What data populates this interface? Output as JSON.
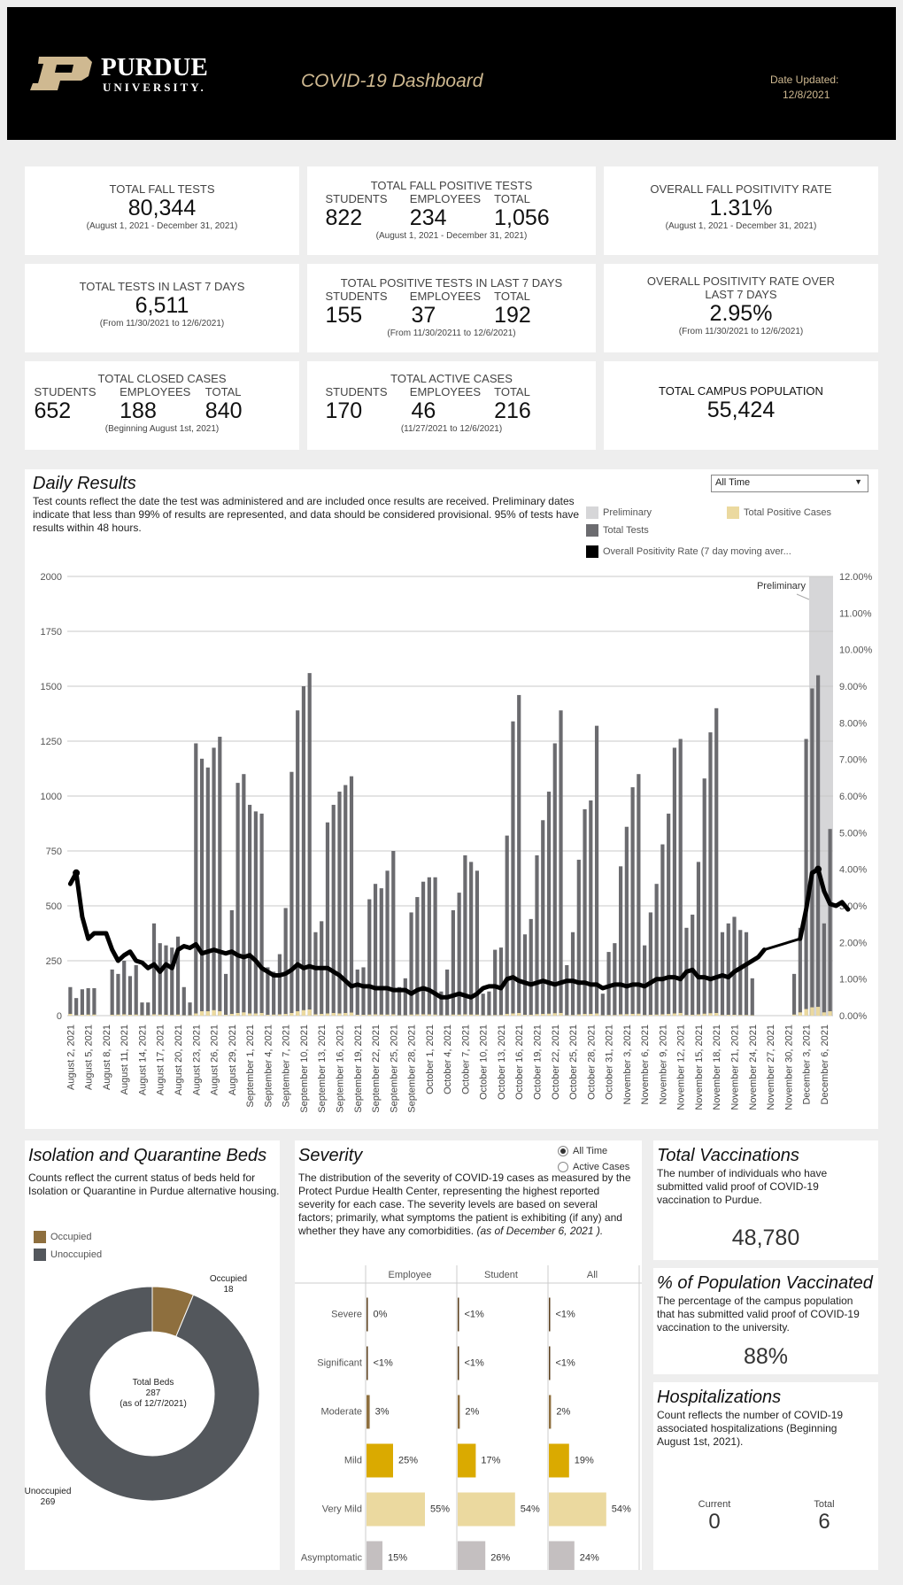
{
  "header": {
    "university_line1": "PURDUE",
    "university_line2": "UNIVERSITY.",
    "dashboard_title": "COVID-19 Dashboard",
    "date_label": "Date Updated:",
    "date_value": "12/8/2021"
  },
  "kpis": {
    "fall_tests": {
      "title": "TOTAL FALL TESTS",
      "value": "80,344",
      "sub": "(August 1, 2021 - December 31, 2021)"
    },
    "fall_positive": {
      "title": "TOTAL FALL POSITIVE TESTS",
      "students_label": "STUDENTS",
      "employees_label": "EMPLOYEES",
      "total_label": "TOTAL",
      "students": "822",
      "employees": "234",
      "total": "1,056",
      "sub": "(August 1, 2021 - December 31, 2021)"
    },
    "fall_rate": {
      "title": "OVERALL FALL POSITIVITY RATE",
      "value": "1.31%",
      "sub": "(August 1, 2021 - December 31, 2021)"
    },
    "tests_7": {
      "title": "TOTAL TESTS IN LAST 7 DAYS",
      "value": "6,511",
      "sub": "(From 11/30/2021 to 12/6/2021)"
    },
    "positive_7": {
      "title": "TOTAL POSITIVE TESTS IN LAST 7 DAYS",
      "students_label": "STUDENTS",
      "employees_label": "EMPLOYEES",
      "total_label": "TOTAL",
      "students": "155",
      "employees": "37",
      "total": "192",
      "sub": "(From 11/30/20211 to 12/6/2021)"
    },
    "rate_7": {
      "title": "OVERALL POSITIVITY RATE OVER LAST 7 DAYS",
      "value": "2.95%",
      "sub": "(From 11/30/2021 to 12/6/2021)"
    },
    "closed": {
      "title": "TOTAL CLOSED CASES",
      "students_label": "STUDENTS",
      "employees_label": "EMPLOYEES",
      "total_label": "TOTAL",
      "students": "652",
      "employees": "188",
      "total": "840",
      "sub": "(Beginning August 1st, 2021)"
    },
    "active": {
      "title": "TOTAL ACTIVE CASES",
      "students_label": "STUDENTS",
      "employees_label": "EMPLOYEES",
      "total_label": "TOTAL",
      "students": "170",
      "employees": "46",
      "total": "216",
      "sub": "(11/27/2021 to 12/6/2021)"
    },
    "population": {
      "title": "TOTAL CAMPUS POPULATION",
      "value": "55,424"
    }
  },
  "daily": {
    "title": "Daily Results",
    "description": "Test counts reflect the date the test was administered and are included once results are received. Preliminary dates indicate that less than 99% of results are represented, and data should be considered provisional. 95% of tests have results within 48 hours.",
    "range_selected": "All Time",
    "legend": {
      "preliminary": "Preliminary",
      "positive": "Total Positive Cases",
      "tests": "Total Tests",
      "rate": "Overall Positivity Rate (7 day moving aver..."
    },
    "preliminary_label": "Preliminary",
    "colors": {
      "tests": "#6b6b6f",
      "positive": "#ebd99f",
      "preliminary": "#d6d6d8",
      "rate": "#000000"
    }
  },
  "chart_data": [
    {
      "type": "bar",
      "title": "Daily Results",
      "y_ticks": [
        0,
        250,
        500,
        750,
        1000,
        1250,
        1500,
        1750,
        2000
      ],
      "ylim": [
        0,
        2000
      ],
      "y2_ticks": [
        0,
        1,
        2,
        3,
        4,
        5,
        6,
        7,
        8,
        9,
        10,
        11,
        12
      ],
      "y2_tick_labels": [
        "0.00%",
        "1.00%",
        "2.00%",
        "3.00%",
        "4.00%",
        "5.00%",
        "6.00%",
        "7.00%",
        "8.00%",
        "9.00%",
        "10.00%",
        "11.00%",
        "12.00%"
      ],
      "y2lim": [
        0,
        12
      ],
      "x_tick_labels": [
        "August 2, 2021",
        "August 5, 2021",
        "August 8, 2021",
        "August 11, 2021",
        "August 14, 2021",
        "August 17, 2021",
        "August 20, 2021",
        "August 23, 2021",
        "August 26, 2021",
        "August 29, 2021",
        "September 1, 2021",
        "September 4, 2021",
        "September 7, 2021",
        "September 10, 2021",
        "September 13, 2021",
        "September 16, 2021",
        "September 19, 2021",
        "September 22, 2021",
        "September 25, 2021",
        "September 28, 2021",
        "October 1, 2021",
        "October 4, 2021",
        "October 7, 2021",
        "October 10, 2021",
        "October 13, 2021",
        "October 16, 2021",
        "October 19, 2021",
        "October 22, 2021",
        "October 25, 2021",
        "October 28, 2021",
        "October 31, 2021",
        "November 3, 2021",
        "November 6, 2021",
        "November 9, 2021",
        "November 12, 2021",
        "November 15, 2021",
        "November 18, 2021",
        "November 21, 2021",
        "November 24, 2021",
        "November 27, 2021",
        "November 30, 2021",
        "December 3, 2021",
        "December 6, 2021"
      ],
      "preliminary_start_day": 124,
      "series": [
        {
          "name": "Total Tests",
          "values": [
            130,
            80,
            120,
            125,
            125,
            0,
            0,
            210,
            190,
            250,
            180,
            230,
            60,
            60,
            420,
            330,
            320,
            310,
            360,
            130,
            60,
            1240,
            1170,
            1130,
            1220,
            1270,
            190,
            480,
            1060,
            1100,
            960,
            930,
            920,
            220,
            200,
            280,
            490,
            1110,
            1390,
            1500,
            1560,
            380,
            430,
            880,
            960,
            1020,
            1050,
            1090,
            210,
            220,
            530,
            600,
            580,
            660,
            750,
            130,
            170,
            470,
            540,
            610,
            630,
            630,
            110,
            210,
            480,
            560,
            730,
            700,
            660,
            100,
            110,
            300,
            310,
            820,
            1340,
            1460,
            370,
            440,
            730,
            890,
            1020,
            1240,
            1390,
            230,
            380,
            710,
            940,
            980,
            1320,
            100,
            290,
            330,
            680,
            860,
            1040,
            1100,
            320,
            470,
            600,
            780,
            920,
            1220,
            1260,
            400,
            460,
            700,
            1080,
            1290,
            1400,
            380,
            420,
            450,
            390,
            380,
            170,
            0,
            0,
            0,
            0,
            0,
            0,
            190,
            400,
            1260,
            1490,
            1550,
            420,
            850
          ]
        },
        {
          "name": "Total Positive Cases",
          "values": [
            8,
            2,
            4,
            5,
            5,
            0,
            0,
            4,
            5,
            6,
            4,
            5,
            2,
            2,
            6,
            5,
            4,
            3,
            5,
            2,
            2,
            10,
            20,
            20,
            25,
            20,
            4,
            8,
            12,
            15,
            10,
            10,
            12,
            4,
            5,
            6,
            8,
            12,
            20,
            25,
            28,
            6,
            8,
            10,
            12,
            10,
            12,
            14,
            4,
            4,
            5,
            6,
            5,
            5,
            6,
            2,
            2,
            5,
            6,
            6,
            6,
            5,
            2,
            2,
            5,
            5,
            6,
            5,
            5,
            2,
            2,
            3,
            3,
            8,
            10,
            12,
            4,
            4,
            7,
            8,
            9,
            11,
            12,
            2,
            3,
            6,
            8,
            8,
            10,
            2,
            3,
            3,
            6,
            7,
            8,
            9,
            3,
            4,
            5,
            6,
            8,
            10,
            12,
            3,
            4,
            6,
            9,
            11,
            12,
            3,
            4,
            4,
            3,
            3,
            2,
            0,
            0,
            0,
            0,
            0,
            0,
            5,
            15,
            30,
            38,
            40,
            15,
            20
          ]
        },
        {
          "name": "Overall Positivity Rate (7 day moving aver...",
          "values": [
            3.6,
            3.9,
            2.7,
            2.1,
            2.25,
            2.25,
            2.25,
            1.8,
            1.5,
            1.65,
            1.75,
            1.5,
            1.45,
            1.3,
            1.4,
            1.2,
            1.4,
            1.3,
            1.8,
            1.9,
            1.85,
            1.95,
            1.7,
            1.75,
            1.8,
            1.75,
            1.7,
            1.75,
            1.65,
            1.6,
            1.65,
            1.5,
            1.3,
            1.2,
            1.1,
            1.1,
            1.15,
            1.25,
            1.4,
            1.3,
            1.35,
            1.3,
            1.3,
            1.3,
            1.2,
            1.1,
            0.95,
            0.8,
            0.85,
            0.8,
            0.8,
            0.75,
            0.75,
            0.75,
            0.7,
            0.7,
            0.7,
            0.6,
            0.7,
            0.75,
            0.7,
            0.6,
            0.5,
            0.5,
            0.55,
            0.6,
            0.55,
            0.5,
            0.6,
            0.75,
            0.8,
            0.8,
            0.75,
            1.0,
            1.05,
            0.95,
            0.9,
            0.85,
            0.9,
            0.95,
            0.9,
            0.85,
            0.9,
            0.95,
            0.95,
            0.9,
            0.9,
            0.85,
            0.85,
            0.75,
            0.8,
            0.85,
            0.85,
            0.8,
            0.85,
            0.85,
            0.8,
            0.9,
            1.0,
            1.0,
            1.05,
            1.05,
            1.0,
            1.2,
            1.25,
            1.05,
            1.05,
            1.0,
            1.05,
            1.1,
            1.05,
            1.2,
            1.3,
            1.4,
            1.5,
            1.6,
            1.8,
            null,
            null,
            null,
            null,
            null,
            2.1,
            2.9,
            3.9,
            4.0,
            3.4,
            3.05,
            3.0,
            3.1,
            2.9
          ]
        }
      ]
    },
    {
      "type": "pie",
      "title": "Isolation and Quarantine Beds",
      "categories": [
        "Occupied",
        "Unoccupied"
      ],
      "values": [
        18,
        269
      ],
      "colors": [
        "#8e6f3e",
        "#53575c"
      ]
    },
    {
      "type": "bar",
      "title": "Severity",
      "categories": [
        "Severe",
        "Significant",
        "Moderate",
        "Mild",
        "Very Mild",
        "Asymptomatic"
      ],
      "series": [
        {
          "name": "Employee",
          "values": [
            0,
            0.5,
            3,
            25,
            55,
            15
          ],
          "labels": [
            "0%",
            "<1%",
            "3%",
            "25%",
            "55%",
            "15%"
          ]
        },
        {
          "name": "Student",
          "values": [
            0.5,
            0.5,
            2,
            17,
            54,
            26
          ],
          "labels": [
            "<1%",
            "<1%",
            "2%",
            "17%",
            "54%",
            "26%"
          ]
        },
        {
          "name": "All",
          "values": [
            0.5,
            0.5,
            2,
            19,
            54,
            24
          ],
          "labels": [
            "<1%",
            "<1%",
            "2%",
            "19%",
            "54%",
            "24%"
          ]
        }
      ],
      "colors": [
        "#5a3e1b",
        "#5a3e1b",
        "#8e6f3e",
        "#daaa00",
        "#ebd99f",
        "#c4bfc0"
      ]
    }
  ],
  "beds": {
    "title": "Isolation and Quarantine Beds",
    "description": "Counts reflect the current status of beds held for Isolation or Quarantine in Purdue alternative housing.",
    "legend_occupied": "Occupied",
    "legend_unoccupied": "Unoccupied",
    "label_occupied": "Occupied",
    "label_occupied_value": "18",
    "label_unoccupied": "Unoccupied",
    "label_unoccupied_value": "269",
    "center_line1": "Total Beds",
    "center_line2": "287",
    "center_line3": "(as of 12/7/2021)"
  },
  "severity": {
    "title": "Severity",
    "description": "The distribution of the severity of COVID-19 cases as measured by the Protect Purdue Health Center, representing the highest reported severity for each case. The severity levels are based on several factors; primarily, what symptoms the patient is exhibiting (if any) and whether they have any comorbidities.",
    "description_italic": "(as of December 6, 2021 ).",
    "radio_all_time": "All Time",
    "radio_active": "Active Cases"
  },
  "vaccinations": {
    "title": "Total Vaccinations",
    "description": "The number of individuals who have submitted valid proof of COVID-19 vaccination to Purdue.",
    "value": "48,780"
  },
  "vaccinated_pct": {
    "title": "% of Population Vaccinated",
    "description": "The percentage of the campus population that has submitted valid proof of COVID-19 vaccination to the university.",
    "value": "88%"
  },
  "hospitalizations": {
    "title": "Hospitalizations",
    "description": "Count reflects the number of COVID-19 associated hospitalizations (Beginning August 1st, 2021).",
    "current_label": "Current",
    "current_value": "0",
    "total_label": "Total",
    "total_value": "6"
  }
}
